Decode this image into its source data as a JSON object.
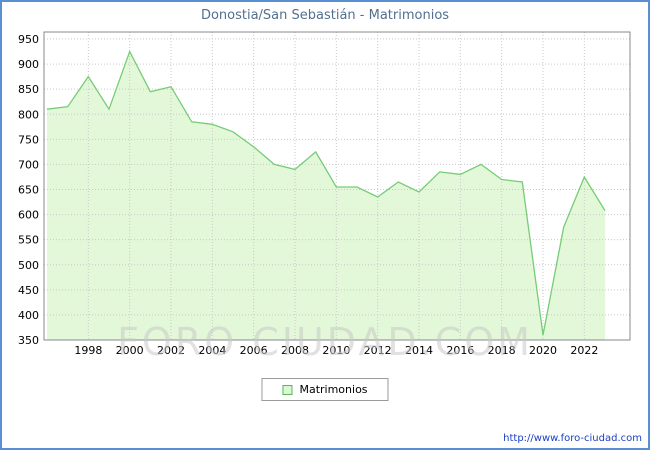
{
  "watermark": "FORO CIUDAD.COM",
  "footer_url": "http://www.foro-ciudad.com",
  "colors": {
    "frame_border": "#5b8fd4",
    "title_text": "#52708f",
    "series_line": "#77cc77",
    "area_fill": "#e3f8d8",
    "gridline": "#c9c9c9",
    "plot_border": "#888888",
    "url_text": "#1a3fc4"
  },
  "chart_data": {
    "type": "area",
    "title": "Donostia/San Sebastián - Matrimonios",
    "xlabel": "",
    "ylabel": "",
    "x": [
      1996,
      1997,
      1998,
      1999,
      2000,
      2001,
      2002,
      2003,
      2004,
      2005,
      2006,
      2007,
      2008,
      2009,
      2010,
      2011,
      2012,
      2013,
      2014,
      2015,
      2016,
      2017,
      2018,
      2019,
      2020,
      2021,
      2022,
      2023
    ],
    "series": [
      {
        "name": "Matrimonios",
        "values": [
          810,
          815,
          875,
          810,
          925,
          845,
          855,
          785,
          780,
          765,
          735,
          700,
          690,
          725,
          655,
          655,
          635,
          665,
          645,
          685,
          680,
          700,
          670,
          665,
          360,
          575,
          675,
          608
        ]
      }
    ],
    "ylim": [
      350,
      950
    ],
    "ytick_step": 50,
    "xticks": [
      1998,
      2000,
      2002,
      2004,
      2006,
      2008,
      2010,
      2012,
      2014,
      2016,
      2018,
      2020,
      2022
    ],
    "grid": true,
    "legend_position": "bottom"
  }
}
